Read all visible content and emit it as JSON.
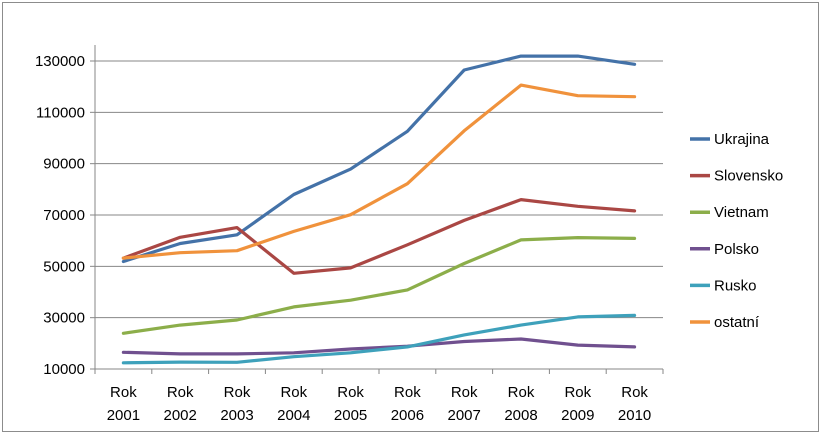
{
  "chart_data": {
    "type": "line",
    "title": "",
    "xlabel": "",
    "ylabel": "",
    "categories": [
      [
        "Rok",
        "2001"
      ],
      [
        "Rok",
        "2002"
      ],
      [
        "Rok",
        "2003"
      ],
      [
        "Rok",
        "2004"
      ],
      [
        "Rok",
        "2005"
      ],
      [
        "Rok",
        "2006"
      ],
      [
        "Rok",
        "2007"
      ],
      [
        "Rok",
        "2008"
      ],
      [
        "Rok",
        "2009"
      ],
      [
        "Rok",
        "2010"
      ]
    ],
    "ylim": [
      10000,
      130000
    ],
    "yticks": [
      10000,
      30000,
      50000,
      70000,
      90000,
      110000,
      130000
    ],
    "ytick_labels": [
      "10000",
      "30000",
      "50000",
      "70000",
      "90000",
      "110000",
      "130000"
    ],
    "grid": true,
    "legend_position": "right",
    "series": [
      {
        "name": "Ukrajina",
        "color": "#4472a8",
        "values": [
          51900,
          58900,
          62300,
          78000,
          87900,
          102600,
          126500,
          131900,
          131900,
          128700
        ]
      },
      {
        "name": "Slovensko",
        "color": "#aa4744",
        "values": [
          53200,
          61300,
          65100,
          47300,
          49400,
          58400,
          67900,
          76000,
          73400,
          71600
        ]
      },
      {
        "name": "Vietnam",
        "color": "#8cae4a",
        "values": [
          23900,
          27100,
          29100,
          34200,
          36800,
          40800,
          51100,
          60300,
          61200,
          60900
        ]
      },
      {
        "name": "Polsko",
        "color": "#70508f",
        "values": [
          16500,
          15900,
          15900,
          16300,
          17800,
          18900,
          20700,
          21700,
          19300,
          18600
        ]
      },
      {
        "name": "Rusko",
        "color": "#3ea1bb",
        "values": [
          12400,
          12700,
          12600,
          14800,
          16300,
          18600,
          23300,
          27100,
          30300,
          30900
        ]
      },
      {
        "name": "ostatní",
        "color": "#f0923c",
        "values": [
          53200,
          55300,
          56100,
          63600,
          70100,
          82200,
          102800,
          120600,
          116500,
          116100
        ]
      }
    ]
  }
}
